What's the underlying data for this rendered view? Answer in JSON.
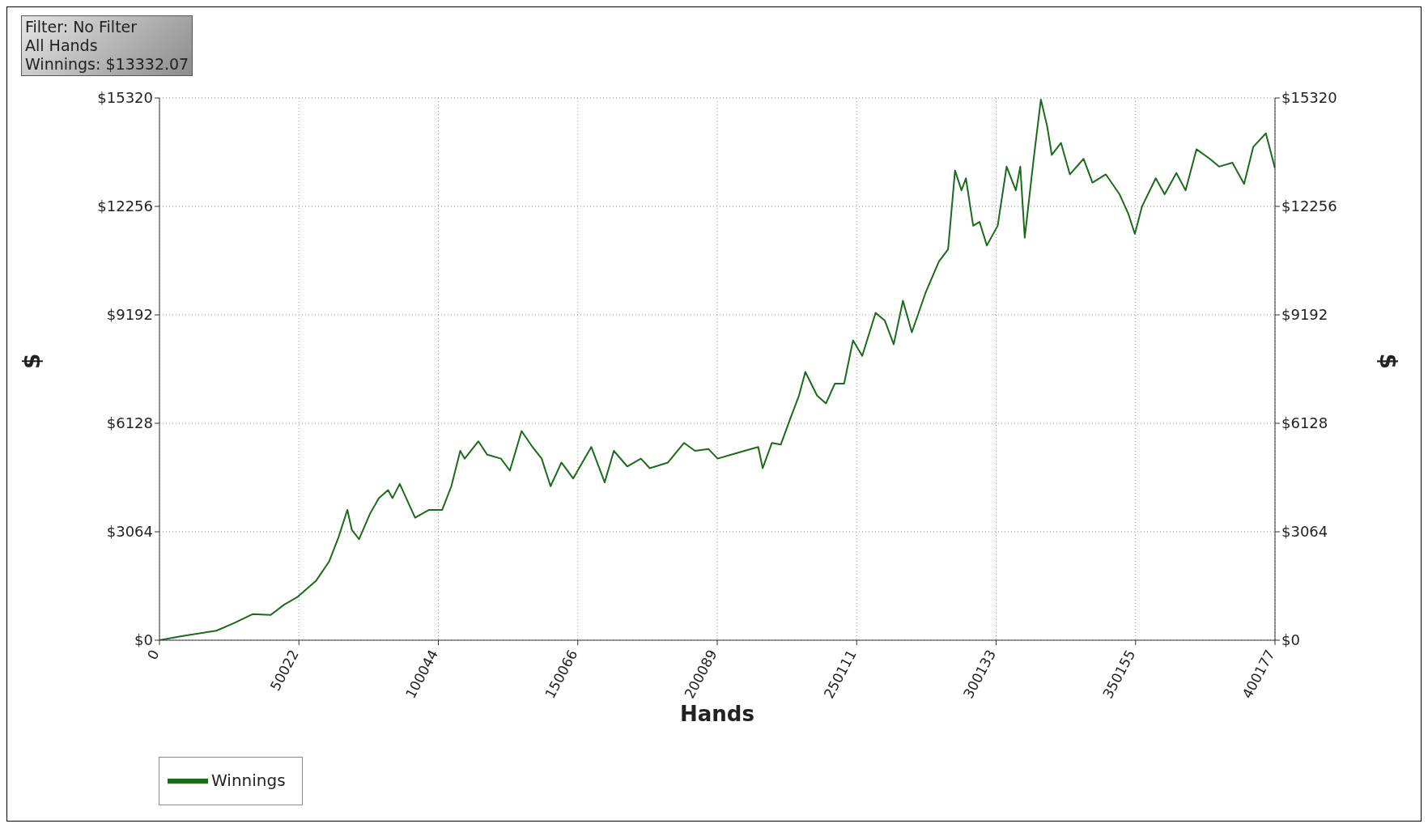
{
  "chart_data": {
    "type": "line",
    "xlabel": "Hands",
    "ylabel": "$",
    "y2label": "$",
    "annotations": [
      "Filter: No Filter",
      "All Hands",
      "Winnings: $13332.07"
    ],
    "x": [
      0,
      7450,
      20400,
      26900,
      33400,
      39900,
      44700,
      49600,
      56100,
      60900,
      64200,
      67400,
      69000,
      71600,
      75500,
      78700,
      82000,
      83600,
      86200,
      88500,
      91700,
      96600,
      101400,
      104700,
      107900,
      109500,
      114400,
      117600,
      122500,
      125700,
      129900,
      133800,
      137100,
      140300,
      144200,
      148400,
      154900,
      159700,
      163000,
      167800,
      172700,
      175900,
      182400,
      188200,
      192100,
      197000,
      200200,
      205100,
      209900,
      214800,
      216400,
      219700,
      222900,
      226200,
      229400,
      231700,
      235900,
      239100,
      242300,
      245600,
      248800,
      252100,
      256900,
      260200,
      263400,
      266700,
      269900,
      274800,
      279600,
      282900,
      285400,
      287700,
      289300,
      291900,
      294200,
      296800,
      300700,
      303900,
      307200,
      308800,
      310400,
      313600,
      316200,
      318500,
      320100,
      323400,
      326600,
      331500,
      334700,
      339500,
      344400,
      347600,
      349900,
      352500,
      357400,
      360600,
      364800,
      368100,
      372000,
      376800,
      380100,
      384900,
      389100,
      392400,
      396900,
      400177
    ],
    "series": [
      {
        "name": "Winnings",
        "color": "#1a6b1a",
        "values": [
          0,
          111,
          268,
          490,
          736,
          714,
          1004,
          1227,
          1673,
          2230,
          2900,
          3680,
          3120,
          2855,
          3570,
          4015,
          4240,
          4015,
          4415,
          4015,
          3460,
          3680,
          3680,
          4350,
          5350,
          5130,
          5620,
          5240,
          5130,
          4790,
          5910,
          5460,
          5130,
          4350,
          5020,
          4570,
          5460,
          4460,
          5350,
          4910,
          5130,
          4860,
          5020,
          5575,
          5350,
          5400,
          5130,
          5240,
          5350,
          5460,
          4860,
          5575,
          5530,
          6240,
          6910,
          7580,
          6910,
          6690,
          7250,
          7250,
          8470,
          8030,
          9250,
          9030,
          8360,
          9590,
          8700,
          9810,
          10700,
          11040,
          13270,
          12710,
          13050,
          11710,
          11820,
          11150,
          11710,
          13380,
          12710,
          13380,
          11370,
          13600,
          15275,
          14500,
          13710,
          14050,
          13160,
          13600,
          12930,
          13160,
          12600,
          12040,
          11480,
          12260,
          13050,
          12600,
          13200,
          12710,
          13870,
          13600,
          13380,
          13490,
          12890,
          13940,
          14320,
          13330
        ]
      }
    ],
    "xlim": [
      0,
      400177
    ],
    "xticks": [
      0,
      50022,
      100044,
      150066,
      200089,
      250111,
      300133,
      350155,
      400177
    ],
    "ylim": [
      0,
      15320
    ],
    "yticks": [
      {
        "value": 0,
        "label": "$0"
      },
      {
        "value": 3064,
        "label": "$3064"
      },
      {
        "value": 6128,
        "label": "$6128"
      },
      {
        "value": 9192,
        "label": "$9192"
      },
      {
        "value": 12256,
        "label": "$12256"
      },
      {
        "value": 15320,
        "label": "$15320"
      }
    ],
    "y2lim": [
      0,
      15320
    ],
    "y2ticks": [
      {
        "value": 0,
        "label": "$0"
      },
      {
        "value": 3064,
        "label": "$3064"
      },
      {
        "value": 6128,
        "label": "$6128"
      },
      {
        "value": 9192,
        "label": "$9192"
      },
      {
        "value": 12256,
        "label": "$12256"
      },
      {
        "value": 15320,
        "label": "$15320"
      }
    ],
    "grid": true,
    "legend": "bottom left",
    "marker": "none",
    "line_style": "solid"
  }
}
